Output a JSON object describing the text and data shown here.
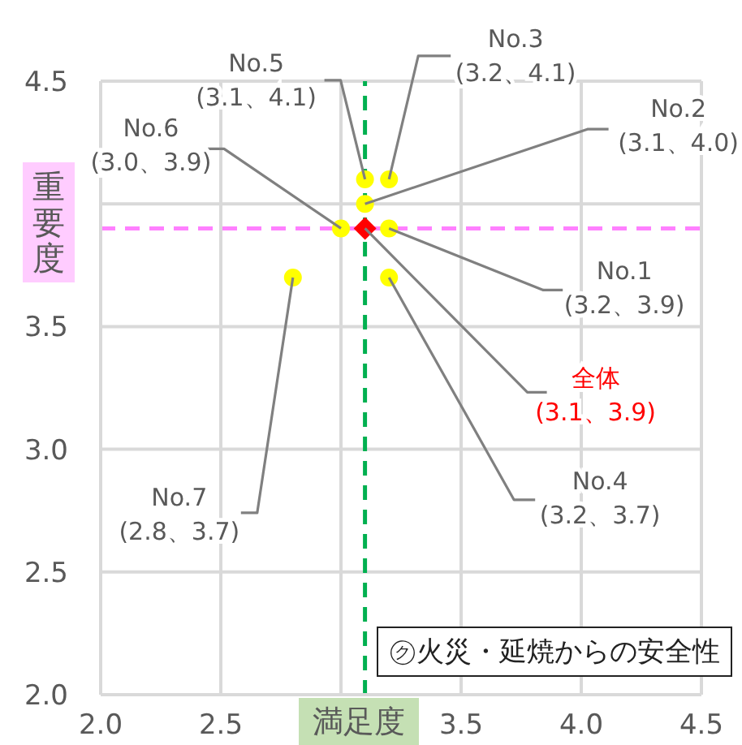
{
  "chart_data": {
    "type": "scatter",
    "title": "㋗火災・延焼からの安全性",
    "xlabel": "満足度",
    "ylabel": "重要度",
    "xlim": [
      2.0,
      4.5
    ],
    "ylim": [
      2.0,
      4.5
    ],
    "xticks": [
      {
        "value": 2,
        "label": "2.0"
      },
      {
        "value": 2.5,
        "label": "2.5"
      },
      {
        "value": 3,
        "label": null
      },
      {
        "value": 3.5,
        "label": "3.5"
      },
      {
        "value": 4,
        "label": "4.0"
      },
      {
        "value": 4.5,
        "label": "4.5"
      }
    ],
    "yticks": [
      {
        "value": 2,
        "label": "2.0"
      },
      {
        "value": 2.5,
        "label": "2.5"
      },
      {
        "value": 3,
        "label": "3.0"
      },
      {
        "value": 3.5,
        "label": "3.5"
      },
      {
        "value": 4,
        "label": null
      },
      {
        "value": 4.5,
        "label": "4.5"
      }
    ],
    "grid": true,
    "series": [
      {
        "color": "#ffff00",
        "marker": "circle",
        "x": [
          3.1,
          3.2,
          3.1,
          3.0,
          3.2,
          3.2,
          2.8
        ],
        "values": [
          4.1,
          4.1,
          4.0,
          3.9,
          3.9,
          3.7,
          3.7
        ]
      },
      {
        "name": "全体",
        "color": "#ff0000",
        "marker": "diamond",
        "x": [
          3.1
        ],
        "values": [
          3.9
        ]
      }
    ],
    "ref_lines": [
      {
        "axis": "x",
        "value": 3.1,
        "color": "#00b050",
        "line_style": "dashed"
      },
      {
        "axis": "y",
        "value": 3.9,
        "color": "#ff80ff",
        "line_style": "dashed"
      }
    ],
    "annotations": [
      {
        "text": "No.5\n(3.1、4.1)",
        "x": 3.1,
        "y": 4.1
      },
      {
        "text": "No.3\n(3.2、4.1)",
        "x": 3.2,
        "y": 4.1
      },
      {
        "text": "No.2\n(3.1、4.0)",
        "x": 3.1,
        "y": 4.0
      },
      {
        "text": "No.6\n(3.0、3.9)",
        "x": 3.0,
        "y": 3.9
      },
      {
        "text": "No.1\n(3.2、3.9)",
        "x": 3.2,
        "y": 3.9
      },
      {
        "text": "(3.1、3.9)",
        "x": 3.1,
        "y": 3.9
      },
      {
        "text": "No.4\n(3.2、3.7)",
        "x": 3.2,
        "y": 3.7
      },
      {
        "text": "No.7\n(2.8、3.7)",
        "x": 2.8,
        "y": 3.7
      }
    ]
  }
}
